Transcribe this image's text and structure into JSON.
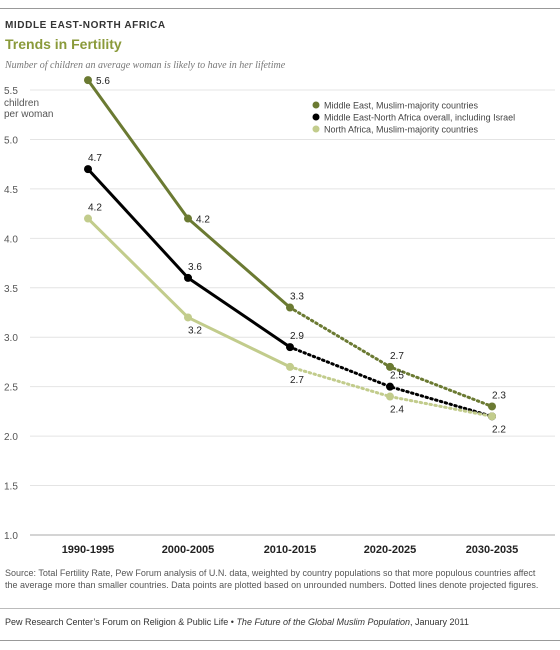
{
  "header": {
    "kicker": "MIDDLE EAST-NORTH AFRICA",
    "title": "Trends in Fertility",
    "subtitle": "Number of children an average woman is likely to have in her lifetime"
  },
  "chart_data": {
    "type": "line",
    "ylabel_lines": [
      "children",
      "per woman"
    ],
    "ylim": [
      1.0,
      5.5
    ],
    "yticks": [
      1.0,
      1.5,
      2.0,
      2.5,
      3.0,
      3.5,
      4.0,
      4.5,
      5.0,
      5.5
    ],
    "ytick_labels": [
      "1.0",
      "1.5",
      "2.0",
      "2.5",
      "3.0",
      "3.5",
      "4.0",
      "4.5",
      "5.0",
      "5.5"
    ],
    "categories": [
      "1990-1995",
      "2000-2005",
      "2010-2015",
      "2020-2025",
      "2030-2035"
    ],
    "projected_from_index": 2,
    "grid": true,
    "legend_position": "top-right",
    "series": [
      {
        "name": "Middle East, Muslim-majority countries",
        "color": "#6b7a32",
        "values": [
          5.6,
          4.2,
          3.3,
          2.7,
          2.3
        ],
        "labels": [
          "5.6",
          "4.2",
          "3.3",
          "2.7",
          "2.3"
        ],
        "label_pos": [
          "right",
          "right",
          "above-right",
          "above-right",
          "above-right"
        ]
      },
      {
        "name": "Middle East-North Africa overall, including Israel",
        "color": "#000000",
        "values": [
          4.7,
          3.6,
          2.9,
          2.5,
          2.2
        ],
        "labels": [
          "4.7",
          "3.6",
          "2.9",
          "2.5",
          "2.2"
        ],
        "label_pos": [
          "above-right",
          "above-right",
          "above-right",
          "above-right",
          "below-right"
        ]
      },
      {
        "name": "North Africa, Muslim-majority countries",
        "color": "#c2cc8c",
        "values": [
          4.2,
          3.2,
          2.7,
          2.4,
          2.2
        ],
        "labels": [
          "4.2",
          "3.2",
          "2.7",
          "2.4",
          ""
        ],
        "label_pos": [
          "above-right",
          "below-right",
          "below-right",
          "below-right",
          "none"
        ]
      }
    ]
  },
  "footer": {
    "source": "Source: Total Fertility Rate, Pew Forum analysis of U.N. data, weighted by country populations so that more populous countries affect the average more than smaller countries. Data points are plotted based on unrounded numbers. Dotted lines denote projected figures.",
    "credit_prefix": "Pew Research Center’s Forum on Religion & Public Life • ",
    "credit_publication": "The Future of the Global Muslim Population",
    "credit_suffix": ", January 2011"
  }
}
